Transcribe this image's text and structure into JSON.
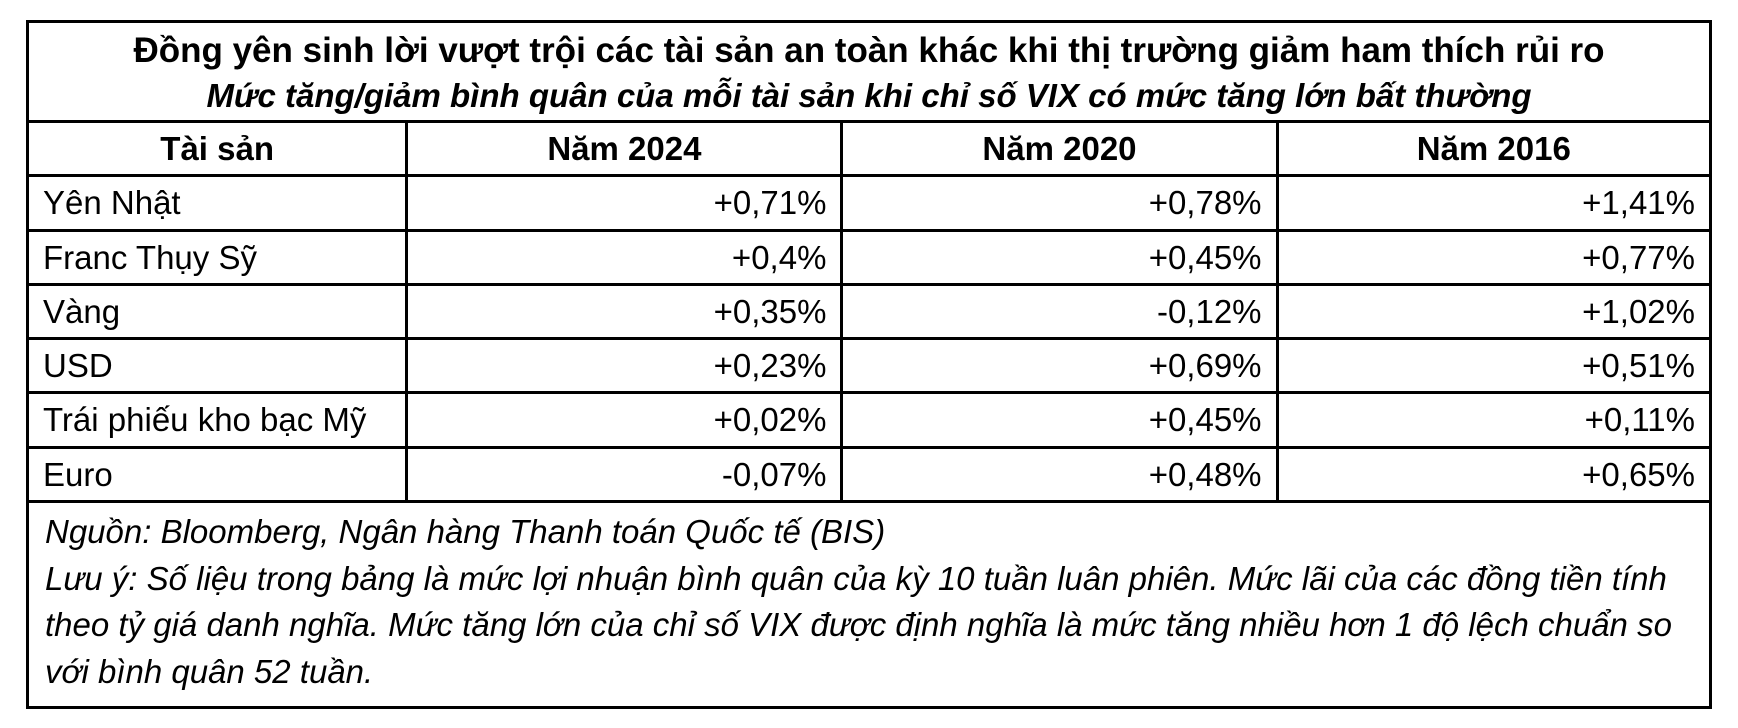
{
  "title": "Đồng yên sinh lời vượt trội các tài sản an toàn khác khi thị trường giảm ham thích rủi ro",
  "subtitle": "Mức tăng/giảm bình quân của mỗi tài sản khi chỉ số VIX có mức tăng lớn bất thường",
  "table": {
    "headers": [
      "Tài sản",
      "Năm 2024",
      "Năm 2020",
      "Năm 2016"
    ],
    "rows": [
      {
        "asset": "Yên Nhật",
        "values": [
          "+0,71%",
          "+0,78%",
          "+1,41%"
        ]
      },
      {
        "asset": "Franc Thụy Sỹ",
        "values": [
          "+0,4%",
          "+0,45%",
          "+0,77%"
        ]
      },
      {
        "asset": "Vàng",
        "values": [
          "+0,35%",
          "-0,12%",
          "+1,02%"
        ]
      },
      {
        "asset": "USD",
        "values": [
          "+0,23%",
          "+0,69%",
          "+0,51%"
        ]
      },
      {
        "asset": "Trái phiếu kho bạc Mỹ",
        "values": [
          "+0,02%",
          "+0,45%",
          "+0,11%"
        ]
      },
      {
        "asset": "Euro",
        "values": [
          "-0,07%",
          "+0,48%",
          "+0,65%"
        ]
      }
    ]
  },
  "footer": {
    "source": "Nguồn: Bloomberg, Ngân hàng Thanh toán Quốc tế (BIS)",
    "note": "Lưu ý: Số liệu trong bảng là mức lợi nhuận bình quân của kỳ 10 tuần luân phiên. Mức lãi của các đồng tiền tính theo tỷ giá danh nghĩa. Mức tăng lớn của chỉ số VIX được định nghĩa là mức tăng nhiều hơn 1 độ lệch chuẩn so với bình quân 52 tuần."
  },
  "chart_data": {
    "type": "table",
    "title": "Đồng yên sinh lời vượt trội các tài sản an toàn khác khi thị trường giảm ham thích rủi ro",
    "subtitle": "Mức tăng/giảm bình quân của mỗi tài sản khi chỉ số VIX có mức tăng lớn bất thường",
    "columns": [
      "Tài sản",
      "Năm 2024",
      "Năm 2020",
      "Năm 2016"
    ],
    "rows": [
      [
        "Yên Nhật",
        0.71,
        0.78,
        1.41
      ],
      [
        "Franc Thụy Sỹ",
        0.4,
        0.45,
        0.77
      ],
      [
        "Vàng",
        0.35,
        -0.12,
        1.02
      ],
      [
        "USD",
        0.23,
        0.69,
        0.51
      ],
      [
        "Trái phiếu kho bạc Mỹ",
        0.02,
        0.45,
        0.11
      ],
      [
        "Euro",
        -0.07,
        0.48,
        0.65
      ]
    ],
    "value_unit": "%",
    "source": "Bloomberg, Ngân hàng Thanh toán Quốc tế (BIS)"
  }
}
